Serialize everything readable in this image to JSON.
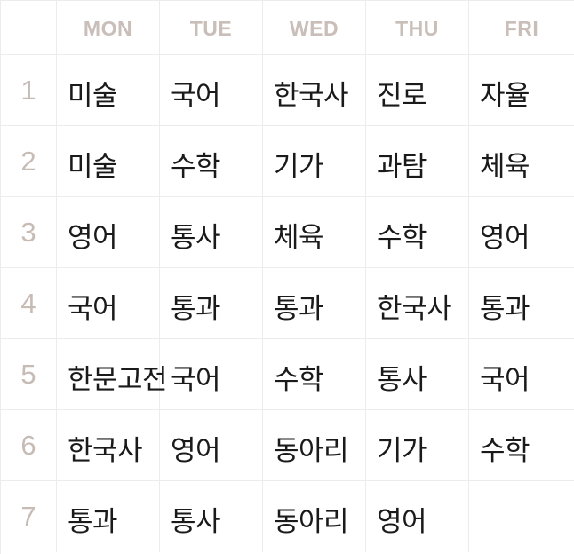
{
  "colors": {
    "header_text": "#c9beb8",
    "period_text": "#c7bbb5",
    "subject_text": "#1a1a1a",
    "grid_line": "#ececec",
    "background": "#ffffff"
  },
  "days": [
    "MON",
    "TUE",
    "WED",
    "THU",
    "FRI"
  ],
  "periods": [
    {
      "number": "1",
      "subjects": [
        "미술",
        "국어",
        "한국사",
        "진로",
        "자율"
      ]
    },
    {
      "number": "2",
      "subjects": [
        "미술",
        "수학",
        "기가",
        "과탐",
        "체육"
      ]
    },
    {
      "number": "3",
      "subjects": [
        "영어",
        "통사",
        "체육",
        "수학",
        "영어"
      ]
    },
    {
      "number": "4",
      "subjects": [
        "국어",
        "통과",
        "통과",
        "한국사",
        "통과"
      ]
    },
    {
      "number": "5",
      "subjects": [
        "한문고전",
        "국어",
        "수학",
        "통사",
        "국어"
      ]
    },
    {
      "number": "6",
      "subjects": [
        "한국사",
        "영어",
        "동아리",
        "기가",
        "수학"
      ]
    },
    {
      "number": "7",
      "subjects": [
        "통과",
        "통사",
        "동아리",
        "영어",
        ""
      ]
    }
  ]
}
